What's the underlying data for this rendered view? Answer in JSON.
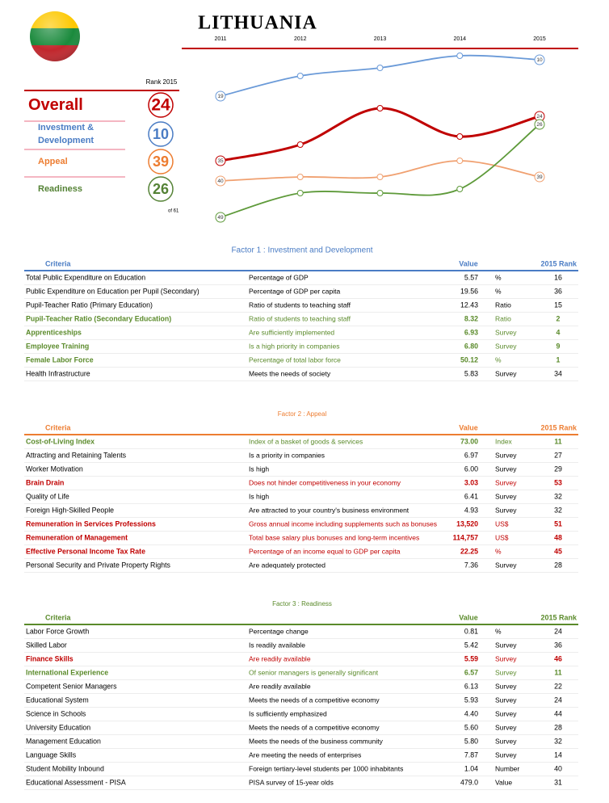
{
  "header": {
    "title": "LITHUANIA"
  },
  "rank_panel": {
    "rank_label": "Rank 2015",
    "of_total": "of 61",
    "rows": [
      {
        "label": "Overall",
        "rank": 24,
        "color": "#c00000"
      },
      {
        "label": "Investment & Development",
        "rank": 10,
        "color": "#4a7cc4"
      },
      {
        "label": "Appeal",
        "rank": 39,
        "color": "#ed7d31"
      },
      {
        "label": "Readiness",
        "rank": 26,
        "color": "#548235"
      }
    ]
  },
  "chart_data": {
    "type": "line",
    "x": [
      2011,
      2012,
      2013,
      2014,
      2015
    ],
    "inverted": true,
    "series": [
      {
        "name": "Investment & Development",
        "color": "#6a9ad8",
        "values": [
          19,
          14,
          12,
          9,
          10
        ]
      },
      {
        "name": "Overall",
        "color": "#c00000",
        "values": [
          35,
          31,
          22,
          29,
          24
        ]
      },
      {
        "name": "Appeal",
        "color": "#f0a070",
        "values": [
          40,
          39,
          39,
          35,
          39
        ]
      },
      {
        "name": "Readiness",
        "color": "#5e9a3a",
        "values": [
          49,
          43,
          43,
          42,
          26
        ]
      }
    ]
  },
  "factors": [
    {
      "title": "Factor 1 : Investment and Development",
      "color": "#4a7cc4",
      "header": {
        "criteria": "Criteria",
        "value": "Value",
        "rank": "2015 Rank"
      },
      "rows": [
        {
          "criterion": "Total Public Expenditure on Education",
          "description": "Percentage of GDP",
          "value": "5.57",
          "unit": "%",
          "rank": 16,
          "color": "#000000"
        },
        {
          "criterion": "Public Expenditure on Education per Pupil (Secondary)",
          "description": "Percentage of GDP per capita",
          "value": "19.56",
          "unit": "%",
          "rank": 36,
          "color": "#000000"
        },
        {
          "criterion": "Pupil-Teacher Ratio (Primary Education)",
          "description": "Ratio of students to teaching staff",
          "value": "12.43",
          "unit": "Ratio",
          "rank": 15,
          "color": "#000000"
        },
        {
          "criterion": "Pupil-Teacher Ratio (Secondary Education)",
          "description": "Ratio of students to teaching staff",
          "value": "8.32",
          "unit": "Ratio",
          "rank": 2,
          "color": "#5a8a2a"
        },
        {
          "criterion": "Apprenticeships",
          "description": "Are sufficiently implemented",
          "value": "6.93",
          "unit": "Survey",
          "rank": 4,
          "color": "#5a8a2a"
        },
        {
          "criterion": "Employee Training",
          "description": "Is a high priority in companies",
          "value": "6.80",
          "unit": "Survey",
          "rank": 9,
          "color": "#5a8a2a"
        },
        {
          "criterion": "Female Labor Force",
          "description": "Percentage of total labor force",
          "value": "50.12",
          "unit": "%",
          "rank": 1,
          "color": "#5a8a2a"
        },
        {
          "criterion": "Health Infrastructure",
          "description": "Meets the needs of society",
          "value": "5.83",
          "unit": "Survey",
          "rank": 34,
          "color": "#000000"
        }
      ]
    },
    {
      "title": "Factor 2 : Appeal",
      "color": "#ed7d31",
      "header": {
        "criteria": "Criteria",
        "value": "Value",
        "rank": "2015 Rank"
      },
      "rows": [
        {
          "criterion": "Cost-of-Living Index",
          "description": "Index of a basket of goods & services",
          "value": "73.00",
          "unit": "Index",
          "rank": 11,
          "color": "#5a8a2a"
        },
        {
          "criterion": "Attracting and Retaining Talents",
          "description": "Is a priority in companies",
          "value": "6.97",
          "unit": "Survey",
          "rank": 27,
          "color": "#000000"
        },
        {
          "criterion": "Worker Motivation",
          "description": "Is high",
          "value": "6.00",
          "unit": "Survey",
          "rank": 29,
          "color": "#000000"
        },
        {
          "criterion": "Brain Drain",
          "description": "Does not hinder competitiveness in your economy",
          "value": "3.03",
          "unit": "Survey",
          "rank": 53,
          "color": "#c00000"
        },
        {
          "criterion": "Quality of Life",
          "description": "Is high",
          "value": "6.41",
          "unit": "Survey",
          "rank": 32,
          "color": "#000000"
        },
        {
          "criterion": "Foreign High-Skilled People",
          "description": "Are attracted to your country's business environment",
          "value": "4.93",
          "unit": "Survey",
          "rank": 32,
          "color": "#000000"
        },
        {
          "criterion": "Remuneration in Services Professions",
          "description": "Gross annual income including supplements such as bonuses",
          "value": "13,520",
          "unit": "US$",
          "rank": 51,
          "color": "#c00000"
        },
        {
          "criterion": "Remuneration of Management",
          "description": "Total base salary plus bonuses and long-term incentives",
          "value": "114,757",
          "unit": "US$",
          "rank": 48,
          "color": "#c00000"
        },
        {
          "criterion": "Effective Personal Income Tax Rate",
          "description": "Percentage of an income equal to GDP per capita",
          "value": "22.25",
          "unit": "%",
          "rank": 45,
          "color": "#c00000"
        },
        {
          "criterion": "Personal Security and Private Property Rights",
          "description": "Are adequately protected",
          "value": "7.36",
          "unit": "Survey",
          "rank": 28,
          "color": "#000000"
        }
      ]
    },
    {
      "title": "Factor 3 : Readiness",
      "color": "#5a8a2a",
      "header": {
        "criteria": "Criteria",
        "value": "Value",
        "rank": "2015 Rank"
      },
      "rows": [
        {
          "criterion": "Labor Force Growth",
          "description": "Percentage change",
          "value": "0.81",
          "unit": "%",
          "rank": 24,
          "color": "#000000"
        },
        {
          "criterion": "Skilled Labor",
          "description": "Is readily available",
          "value": "5.42",
          "unit": "Survey",
          "rank": 36,
          "color": "#000000"
        },
        {
          "criterion": "Finance Skills",
          "description": "Are readily available",
          "value": "5.59",
          "unit": "Survey",
          "rank": 46,
          "color": "#c00000"
        },
        {
          "criterion": "International Experience",
          "description": "Of senior managers is generally significant",
          "value": "6.57",
          "unit": "Survey",
          "rank": 11,
          "color": "#5a8a2a"
        },
        {
          "criterion": "Competent Senior Managers",
          "description": "Are readily available",
          "value": "6.13",
          "unit": "Survey",
          "rank": 22,
          "color": "#000000"
        },
        {
          "criterion": "Educational System",
          "description": "Meets the needs of a competitive economy",
          "value": "5.93",
          "unit": "Survey",
          "rank": 24,
          "color": "#000000"
        },
        {
          "criterion": "Science in Schools",
          "description": "Is sufficiently emphasized",
          "value": "4.40",
          "unit": "Survey",
          "rank": 44,
          "color": "#000000"
        },
        {
          "criterion": "University Education",
          "description": "Meets the needs of a competitive economy",
          "value": "5.60",
          "unit": "Survey",
          "rank": 28,
          "color": "#000000"
        },
        {
          "criterion": "Management Education",
          "description": "Meets the needs of the business community",
          "value": "5.80",
          "unit": "Survey",
          "rank": 32,
          "color": "#000000"
        },
        {
          "criterion": "Language Skills",
          "description": "Are meeting the needs of enterprises",
          "value": "7.87",
          "unit": "Survey",
          "rank": 14,
          "color": "#000000"
        },
        {
          "criterion": "Student Mobility Inbound",
          "description": "Foreign tertiary-level students per 1000 inhabitants",
          "value": "1.04",
          "unit": "Number",
          "rank": 40,
          "color": "#000000"
        },
        {
          "criterion": "Educational Assessment - PISA",
          "description": "PISA survey of 15-year olds",
          "value": "479.0",
          "unit": "Value",
          "rank": 31,
          "color": "#000000"
        }
      ]
    }
  ]
}
